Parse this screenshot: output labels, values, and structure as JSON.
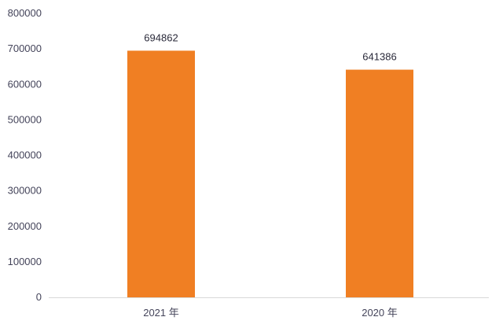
{
  "chart_data": {
    "type": "bar",
    "categories": [
      "2021 年",
      "2020 年"
    ],
    "values": [
      694862,
      641386
    ],
    "data_labels": [
      "694862",
      "641386"
    ],
    "ylim": [
      0,
      800000
    ],
    "yticks": [
      "0",
      "100000",
      "200000",
      "300000",
      "400000",
      "500000",
      "600000",
      "700000",
      "800000"
    ],
    "grid": false,
    "legend": "none",
    "title": "",
    "xlabel": "",
    "ylabel": "",
    "colors": {
      "bar": "#F07F23",
      "axis": "#d9d9d9"
    }
  }
}
